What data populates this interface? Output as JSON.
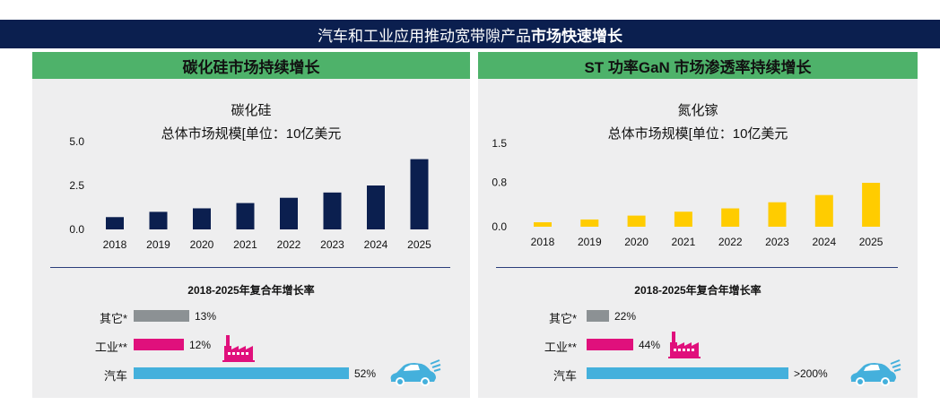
{
  "banner": {
    "title_normal": "汽车和工业应用推动宽带隙产品",
    "title_bold": "市场快速增长"
  },
  "colors": {
    "banner_bg": "#0b1f4f",
    "panel_header": "#4eb26a",
    "sic_bar": "#0b1f4f",
    "gan_bar": "#ffcc00",
    "other_bar": "#8c9194",
    "industry_bar": "#e0107c",
    "auto_bar": "#44b0dc"
  },
  "left_panel": {
    "header": "碳化硅市场持续增长",
    "chart_title_line1": "碳化硅",
    "chart_title_line2": "总体市场规模[单位：10亿美元",
    "cagr_title": "2018-2025年复合年增长率",
    "cagr_rows": [
      {
        "label": "其它*",
        "value": 13,
        "text": "13%",
        "color": "#8c9194"
      },
      {
        "label": "工业**",
        "value": 12,
        "text": "12%",
        "color": "#e0107c"
      },
      {
        "label": "汽车",
        "value": 52,
        "text": "52%",
        "color": "#44b0dc"
      }
    ],
    "icons": [
      "factory-icon",
      "car-icon"
    ]
  },
  "right_panel": {
    "header": "ST 功率GaN 市场渗透率持续增长",
    "chart_title_line1": "氮化镓",
    "chart_title_line2": "总体市场规模[单位：10亿美元",
    "cagr_title": "2018-2025年复合年增长率",
    "cagr_rows": [
      {
        "label": "其它*",
        "value": 22,
        "text": "22%",
        "color": "#8c9194"
      },
      {
        "label": "工业**",
        "value": 44,
        "text": "44%",
        "color": "#e0107c"
      },
      {
        "label": "汽车",
        "value": 200,
        "text": ">200%",
        "color": "#44b0dc"
      }
    ],
    "icons": [
      "factory-icon",
      "car-icon"
    ]
  },
  "chart_data": [
    {
      "type": "bar",
      "title": "碳化硅 总体市场规模[单位：10亿美元",
      "categories": [
        "2018",
        "2019",
        "2020",
        "2021",
        "2022",
        "2023",
        "2024",
        "2025"
      ],
      "values": [
        0.7,
        1.0,
        1.2,
        1.5,
        1.8,
        2.1,
        2.5,
        4.0
      ],
      "yticks": [
        "0.0",
        "2.5",
        "5.0"
      ],
      "ylim": [
        0,
        5.0
      ],
      "xlabel": "",
      "ylabel": ""
    },
    {
      "type": "bar",
      "title": "氮化镓 总体市场规模[单位：10亿美元",
      "categories": [
        "2018",
        "2019",
        "2020",
        "2021",
        "2022",
        "2023",
        "2024",
        "2025"
      ],
      "values": [
        0.08,
        0.13,
        0.2,
        0.27,
        0.33,
        0.44,
        0.57,
        0.79
      ],
      "yticks": [
        "0.0",
        "0.8",
        "1.5"
      ],
      "ylim": [
        0,
        1.5
      ],
      "xlabel": "",
      "ylabel": ""
    }
  ]
}
